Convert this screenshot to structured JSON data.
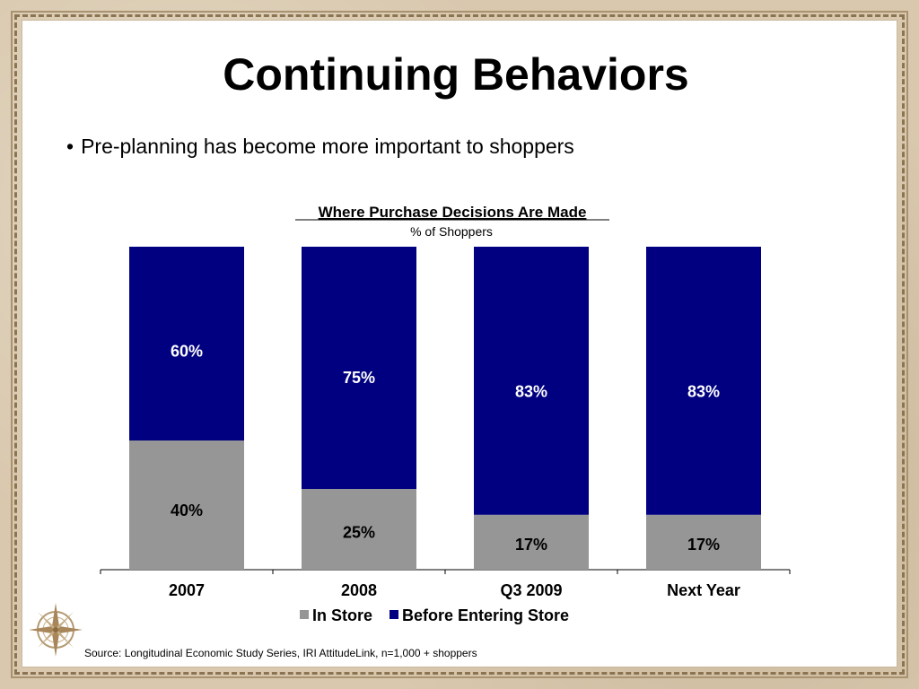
{
  "slide": {
    "title": "Continuing Behaviors",
    "bullet": "Pre-planning has become more important to shoppers",
    "source": "Source: Longitudinal Economic Study Series, IRI AttitudeLink, n=1,000 + shoppers"
  },
  "chart_data": {
    "type": "bar",
    "stacked": true,
    "title": "Where Purchase Decisions Are Made",
    "subtitle": "% of Shoppers",
    "categories": [
      "2007",
      "2008",
      "Q3 2009",
      "Next Year"
    ],
    "series": [
      {
        "name": "In Store",
        "values": [
          40,
          25,
          17,
          17
        ],
        "labels": [
          "40%",
          "25%",
          "17%",
          "17%"
        ],
        "color": "#969696",
        "label_color": "#000000"
      },
      {
        "name": "Before Entering Store",
        "values": [
          60,
          75,
          83,
          83
        ],
        "labels": [
          "60%",
          "75%",
          "83%",
          "83%"
        ],
        "color": "#000080",
        "label_color": "#ffffff"
      }
    ],
    "ylim": [
      0,
      100
    ],
    "legend_position": "bottom",
    "grid": false
  },
  "colors": {
    "frame": "#8b7452",
    "background": "#d9c8ae"
  }
}
